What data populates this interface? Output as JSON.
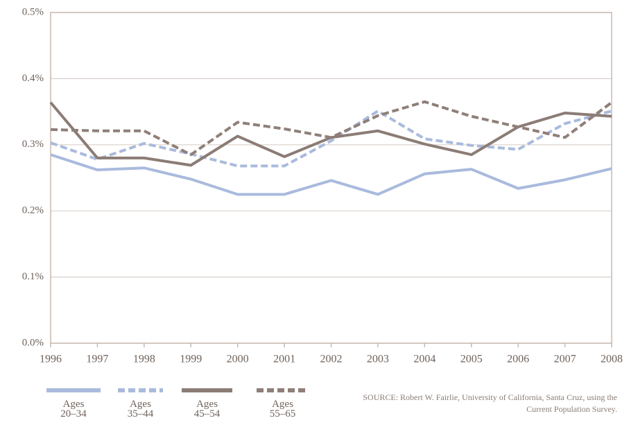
{
  "chart_data": {
    "type": "line",
    "x": [
      1996,
      1997,
      1998,
      1999,
      2000,
      2001,
      2002,
      2003,
      2004,
      2005,
      2006,
      2007,
      2008
    ],
    "xlim": [
      1996,
      2008
    ],
    "xticks": [
      1996,
      1997,
      1998,
      1999,
      2000,
      2001,
      2002,
      2003,
      2004,
      2005,
      2006,
      2007,
      2008
    ],
    "ylim": [
      0,
      0.5
    ],
    "yticks": [
      {
        "value": 0,
        "label": "0.0%"
      },
      {
        "value": 0.1,
        "label": "0.1%"
      },
      {
        "value": 0.2,
        "label": "0.2%"
      },
      {
        "value": 0.3,
        "label": "0.3%"
      },
      {
        "value": 0.4,
        "label": "0.4%"
      },
      {
        "value": 0.5,
        "label": "0.5%"
      }
    ],
    "grid": true,
    "series": [
      {
        "name": "Ages 20–34",
        "color": "#a9badd",
        "line_style": "solid",
        "values": [
          0.285,
          0.262,
          0.265,
          0.248,
          0.225,
          0.225,
          0.246,
          0.225,
          0.256,
          0.263,
          0.234,
          0.247,
          0.264
        ]
      },
      {
        "name": "Ages 35–44",
        "color": "#a9badd",
        "line_style": "dashed",
        "values": [
          0.303,
          0.278,
          0.302,
          0.286,
          0.268,
          0.268,
          0.306,
          0.351,
          0.309,
          0.299,
          0.293,
          0.332,
          0.351
        ]
      },
      {
        "name": "Ages 45–54",
        "color": "#8b7c75",
        "line_style": "solid",
        "values": [
          0.364,
          0.28,
          0.28,
          0.269,
          0.313,
          0.282,
          0.311,
          0.321,
          0.301,
          0.285,
          0.327,
          0.348,
          0.343
        ]
      },
      {
        "name": "Ages 55–65",
        "color": "#8f7f78",
        "line_style": "dashed",
        "values": [
          0.323,
          0.321,
          0.321,
          0.285,
          0.334,
          0.324,
          0.311,
          0.344,
          0.365,
          0.343,
          0.327,
          0.311,
          0.364
        ]
      }
    ],
    "source": "SOURCE: Robert W. Fairlie, University of California, Santa Cruz, using the Current Population Survey."
  }
}
